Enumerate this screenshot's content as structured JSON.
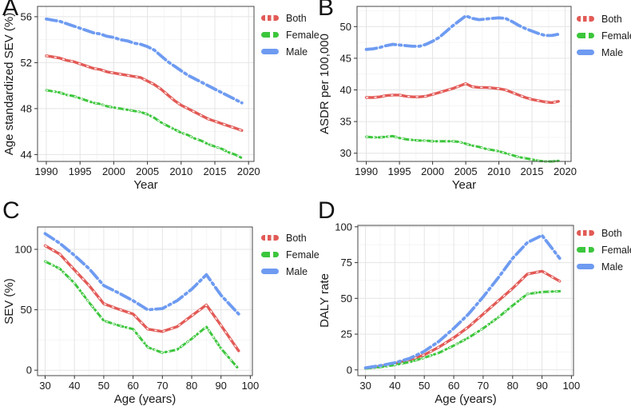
{
  "figure": {
    "background": "#ffffff",
    "text_color": "#1a1a1a",
    "grid_major_color": "#e4e4e4",
    "grid_minor_color": "#f3f3f3",
    "border_color": "#474747",
    "tick_color": "#333333",
    "legend": {
      "position": "right",
      "entries": [
        {
          "label": "Both",
          "color": "#e25a56"
        },
        {
          "label": "Female",
          "color": "#3cc63c"
        },
        {
          "label": "Male",
          "color": "#6e9bf1"
        }
      ]
    }
  },
  "chart_data": [
    {
      "panel": "A",
      "type": "line",
      "title": "",
      "xlabel": "Year",
      "ylabel": "Age standardized SEV (%)",
      "xlim": [
        1988.7,
        2020.8
      ],
      "ylim": [
        43.4,
        56.9
      ],
      "xticks": [
        1990,
        1995,
        2000,
        2005,
        2010,
        2015,
        2020
      ],
      "yticks": [
        44,
        48,
        52,
        56
      ],
      "grid": true,
      "x": [
        1990,
        1991,
        1992,
        1993,
        1994,
        1995,
        1996,
        1997,
        1998,
        1999,
        2000,
        2001,
        2002,
        2003,
        2004,
        2005,
        2006,
        2007,
        2008,
        2009,
        2010,
        2011,
        2012,
        2013,
        2014,
        2015,
        2016,
        2017,
        2018,
        2019
      ],
      "series": [
        {
          "name": "Both",
          "color": "#e25a56",
          "values": [
            52.6,
            52.5,
            52.4,
            52.2,
            52.1,
            51.9,
            51.7,
            51.5,
            51.4,
            51.2,
            51.1,
            51.0,
            50.9,
            50.8,
            50.7,
            50.4,
            50.1,
            49.7,
            49.2,
            48.7,
            48.3,
            48.0,
            47.7,
            47.4,
            47.1,
            46.9,
            46.7,
            46.5,
            46.3,
            46.1
          ]
        },
        {
          "name": "Female",
          "color": "#3cc63c",
          "values": [
            49.6,
            49.5,
            49.4,
            49.2,
            49.1,
            48.9,
            48.7,
            48.5,
            48.4,
            48.2,
            48.1,
            48.0,
            47.9,
            47.8,
            47.7,
            47.5,
            47.2,
            46.8,
            46.5,
            46.2,
            45.9,
            45.7,
            45.4,
            45.2,
            44.9,
            44.7,
            44.5,
            44.2,
            44.0,
            43.7
          ]
        },
        {
          "name": "Male",
          "color": "#6e9bf1",
          "values": [
            55.8,
            55.7,
            55.6,
            55.4,
            55.2,
            55.0,
            54.8,
            54.6,
            54.5,
            54.3,
            54.2,
            54.0,
            53.9,
            53.7,
            53.6,
            53.4,
            53.1,
            52.6,
            52.1,
            51.7,
            51.3,
            50.9,
            50.6,
            50.3,
            50.0,
            49.7,
            49.4,
            49.1,
            48.8,
            48.5
          ]
        }
      ]
    },
    {
      "panel": "B",
      "type": "line",
      "title": "",
      "xlabel": "Year",
      "ylabel": "ASDR per 100,000",
      "xlim": [
        1988.6,
        2020.9
      ],
      "ylim": [
        28.7,
        53.2
      ],
      "xticks": [
        1990,
        1995,
        2000,
        2005,
        2010,
        2015,
        2020
      ],
      "yticks": [
        30,
        35,
        40,
        45,
        50
      ],
      "grid": true,
      "x": [
        1990,
        1991,
        1992,
        1993,
        1994,
        1995,
        1996,
        1997,
        1998,
        1999,
        2000,
        2001,
        2002,
        2003,
        2004,
        2005,
        2006,
        2007,
        2008,
        2009,
        2010,
        2011,
        2012,
        2013,
        2014,
        2015,
        2016,
        2017,
        2018,
        2019
      ],
      "series": [
        {
          "name": "Both",
          "color": "#e25a56",
          "values": [
            38.8,
            38.8,
            38.9,
            39.1,
            39.2,
            39.2,
            39.0,
            38.9,
            38.9,
            39.0,
            39.3,
            39.6,
            39.9,
            40.2,
            40.6,
            41.0,
            40.5,
            40.4,
            40.4,
            40.3,
            40.2,
            40.0,
            39.6,
            39.2,
            38.8,
            38.5,
            38.3,
            38.1,
            38.0,
            38.2
          ]
        },
        {
          "name": "Female",
          "color": "#3cc63c",
          "values": [
            32.6,
            32.5,
            32.5,
            32.6,
            32.7,
            32.4,
            32.2,
            32.1,
            32.0,
            32.0,
            31.9,
            31.9,
            31.9,
            31.9,
            31.8,
            31.5,
            31.2,
            31.0,
            30.7,
            30.5,
            30.3,
            30.0,
            29.7,
            29.4,
            29.2,
            29.0,
            28.8,
            28.7,
            28.7,
            28.8
          ]
        },
        {
          "name": "Male",
          "color": "#6e9bf1",
          "values": [
            46.4,
            46.5,
            46.7,
            47.0,
            47.2,
            47.1,
            47.0,
            46.9,
            46.9,
            47.2,
            47.7,
            48.3,
            49.2,
            50.1,
            50.9,
            51.7,
            51.3,
            51.1,
            51.2,
            51.3,
            51.4,
            51.3,
            50.8,
            50.2,
            49.7,
            49.3,
            48.9,
            48.6,
            48.6,
            48.8
          ]
        }
      ]
    },
    {
      "panel": "C",
      "type": "line",
      "title": "",
      "xlabel": "Age (years)",
      "ylabel": "SEV (%)",
      "xlim": [
        27.4,
        100.7
      ],
      "ylim": [
        -4.5,
        118.5
      ],
      "xticks": [
        30,
        40,
        50,
        60,
        70,
        80,
        90,
        100
      ],
      "yticks": [
        0,
        50,
        100
      ],
      "grid": true,
      "x": [
        30,
        35,
        40,
        45,
        50,
        55,
        60,
        65,
        70,
        75,
        80,
        85,
        90,
        96
      ],
      "series": [
        {
          "name": "Both",
          "color": "#e25a56",
          "values": [
            103,
            96,
            83,
            70,
            55,
            50.5,
            46.5,
            34,
            32,
            36,
            45,
            54,
            37,
            16
          ]
        },
        {
          "name": "Female",
          "color": "#3cc63c",
          "values": [
            90,
            84,
            72,
            56,
            41,
            37,
            34,
            19,
            14.5,
            17,
            26,
            36,
            18,
            1
          ]
        },
        {
          "name": "Male",
          "color": "#6e9bf1",
          "values": [
            113,
            105,
            95,
            84,
            70,
            64,
            57.5,
            50,
            51,
            57.5,
            67,
            79,
            62,
            46.5
          ]
        }
      ]
    },
    {
      "panel": "D",
      "type": "line",
      "title": "",
      "xlabel": "Age (years)",
      "ylabel": "DALY rate",
      "xlim": [
        27.4,
        100.7
      ],
      "ylim": [
        -4,
        101
      ],
      "xticks": [
        30,
        40,
        50,
        60,
        70,
        80,
        90,
        100
      ],
      "yticks": [
        0,
        25,
        50,
        75,
        100
      ],
      "grid": true,
      "x": [
        30,
        35,
        40,
        45,
        50,
        55,
        60,
        65,
        70,
        75,
        80,
        85,
        90,
        96
      ],
      "series": [
        {
          "name": "Both",
          "color": "#e25a56",
          "values": [
            1.2,
            2.5,
            4.5,
            7,
            10.5,
            16,
            22.5,
            30,
            39,
            48,
            57,
            67,
            69,
            62
          ]
        },
        {
          "name": "Female",
          "color": "#3cc63c",
          "values": [
            1,
            2,
            3.5,
            5.5,
            8.5,
            12,
            17,
            22.5,
            29,
            36.5,
            45,
            53,
            54.5,
            55
          ]
        },
        {
          "name": "Male",
          "color": "#6e9bf1",
          "values": [
            1.5,
            3,
            5,
            8,
            13,
            20,
            29,
            39,
            51,
            64,
            78,
            89,
            94,
            78
          ]
        }
      ]
    }
  ]
}
